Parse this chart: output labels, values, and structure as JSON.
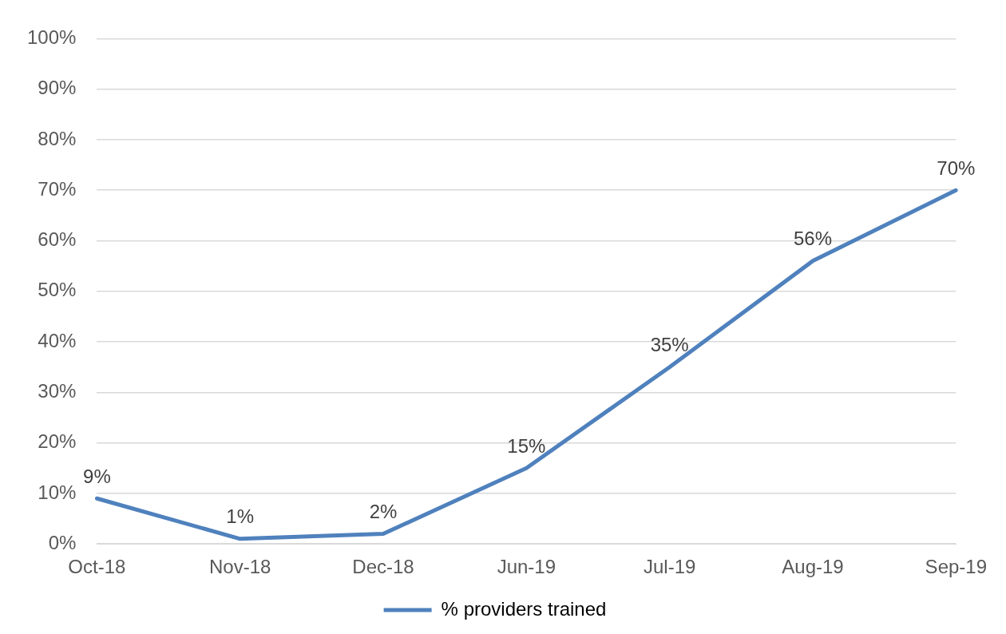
{
  "chart_data": {
    "type": "line",
    "categories": [
      "Oct-18",
      "Nov-18",
      "Dec-18",
      "Jun-19",
      "Jul-19",
      "Aug-19",
      "Sep-19"
    ],
    "series": [
      {
        "name": "% providers trained",
        "color": "#4f81bd",
        "values": [
          9,
          1,
          2,
          15,
          35,
          56,
          70
        ],
        "value_labels": [
          "9%",
          "1%",
          "2%",
          "15%",
          "35%",
          "56%",
          "70%"
        ]
      }
    ],
    "ylim": [
      0,
      100
    ],
    "yticks": [
      {
        "value": 0,
        "label": "0%"
      },
      {
        "value": 10,
        "label": "10%"
      },
      {
        "value": 20,
        "label": "20%"
      },
      {
        "value": 30,
        "label": "30%"
      },
      {
        "value": 40,
        "label": "40%"
      },
      {
        "value": 50,
        "label": "50%"
      },
      {
        "value": 60,
        "label": "60%"
      },
      {
        "value": 70,
        "label": "70%"
      },
      {
        "value": 80,
        "label": "80%"
      },
      {
        "value": 90,
        "label": "90%"
      },
      {
        "value": 100,
        "label": "100%"
      }
    ],
    "grid": "y",
    "legend": "bottom"
  }
}
